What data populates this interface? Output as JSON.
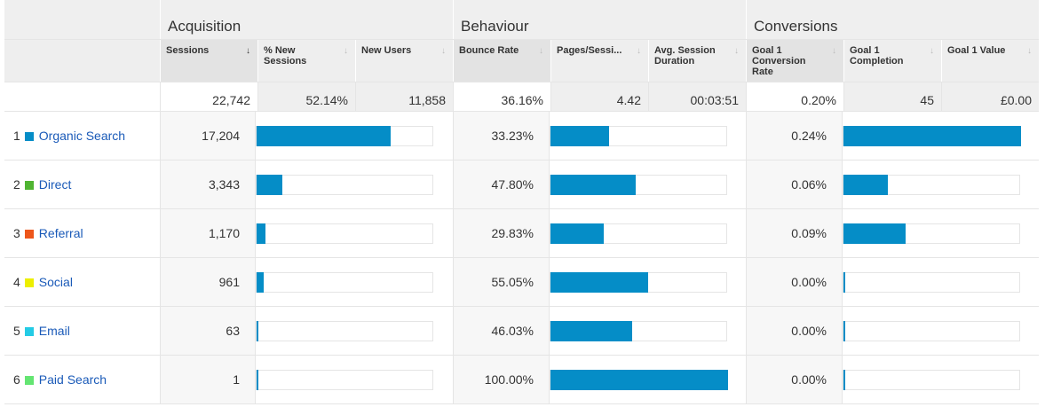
{
  "groups": [
    {
      "title": "Acquisition"
    },
    {
      "title": "Behaviour"
    },
    {
      "title": "Conversions"
    }
  ],
  "columns": [
    {
      "label": "Sessions",
      "sorted": true
    },
    {
      "label": "% New Sessions"
    },
    {
      "label": "New Users"
    },
    {
      "label": "Bounce Rate",
      "sorted": false
    },
    {
      "label": "Pages/Sessi..."
    },
    {
      "label": "Avg. Session Duration"
    },
    {
      "label": "Goal 1 Conversion Rate"
    },
    {
      "label": "Goal 1 Completion"
    },
    {
      "label": "Goal 1 Value"
    }
  ],
  "sort_icon": "arrow-down-icon",
  "totals": [
    "22,742",
    "52.14%",
    "11,858",
    "36.16%",
    "4.42",
    "00:03:51",
    "0.20%",
    "45",
    "£0.00"
  ],
  "bar_color": "#058dc7",
  "rows": [
    {
      "index": "1",
      "name": "Organic Search",
      "color": "#058dc7",
      "sessions": "17,204",
      "sessions_fraction": 0.756,
      "bounce": "33.23%",
      "bounce_fraction": 0.3323,
      "conv": "0.24%",
      "completion_fraction": 1.0
    },
    {
      "index": "2",
      "name": "Direct",
      "color": "#50b432",
      "sessions": "3,343",
      "sessions_fraction": 0.147,
      "bounce": "47.80%",
      "bounce_fraction": 0.478,
      "conv": "0.06%",
      "completion_fraction": 0.25
    },
    {
      "index": "3",
      "name": "Referral",
      "color": "#ed561b",
      "sessions": "1,170",
      "sessions_fraction": 0.051,
      "bounce": "29.83%",
      "bounce_fraction": 0.2983,
      "conv": "0.09%",
      "completion_fraction": 0.35
    },
    {
      "index": "4",
      "name": "Social",
      "color": "#edef00",
      "sessions": "961",
      "sessions_fraction": 0.042,
      "bounce": "55.05%",
      "bounce_fraction": 0.5505,
      "conv": "0.00%",
      "completion_fraction": 0
    },
    {
      "index": "5",
      "name": "Email",
      "color": "#24cbe5",
      "sessions": "63",
      "sessions_fraction": 0.003,
      "bounce": "46.03%",
      "bounce_fraction": 0.4603,
      "conv": "0.00%",
      "completion_fraction": 0
    },
    {
      "index": "6",
      "name": "Paid Search",
      "color": "#64e572",
      "sessions": "1",
      "sessions_fraction": 0.0001,
      "bounce": "100.00%",
      "bounce_fraction": 1.0,
      "conv": "0.00%",
      "completion_fraction": 0
    }
  ]
}
